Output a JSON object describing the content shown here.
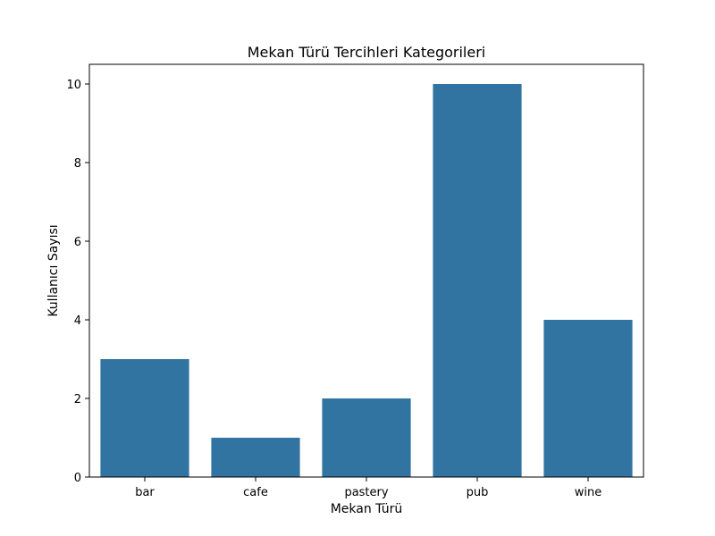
{
  "chart_data": {
    "type": "bar",
    "title": "Mekan Türü Tercihleri Kategorileri",
    "xlabel": "Mekan Türü",
    "ylabel": "Kullanıcı Sayısı",
    "categories": [
      "bar",
      "cafe",
      "pastery",
      "pub",
      "wine"
    ],
    "values": [
      3,
      1,
      2,
      10,
      4
    ],
    "ylim": [
      0,
      10.5
    ],
    "yticks": [
      0,
      2,
      4,
      6,
      8,
      10
    ],
    "grid": false,
    "bar_color": "#3274a1"
  }
}
